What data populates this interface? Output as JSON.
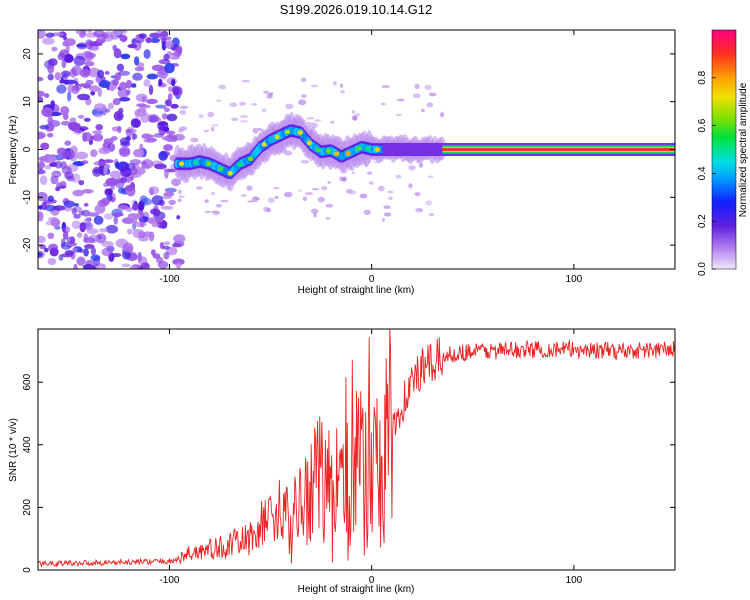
{
  "title": "S199.2026.019.10.14.G12",
  "chart_data": [
    {
      "type": "heatmap",
      "panel": "top",
      "xlabel": "Height of straight line (km)",
      "ylabel": "Frequency (Hz)",
      "xlim": [
        -165,
        150
      ],
      "ylim": [
        -25,
        25
      ],
      "xticks": [
        -100,
        0,
        100
      ],
      "yticks": [
        -20,
        -10,
        0,
        10,
        20
      ],
      "xtick_labels": [
        "-100",
        "0",
        "100"
      ],
      "ytick_labels": [
        "-20",
        "-10",
        "0",
        "10",
        "20"
      ],
      "noise_region_x": [
        -165,
        -97
      ],
      "ridge": {
        "x": [
          -96,
          -90,
          -85,
          -80,
          -75,
          -70,
          -65,
          -60,
          -55,
          -50,
          -45,
          -40,
          -35,
          -30,
          -25,
          -20,
          -15,
          -10,
          -5,
          0,
          10,
          20,
          30,
          35,
          150
        ],
        "freq": [
          -3,
          -3,
          -2.5,
          -3,
          -4,
          -5,
          -3,
          -2,
          0.5,
          2,
          3,
          4,
          3.5,
          1,
          -0.5,
          -0.2,
          -1.5,
          -0.5,
          0.5,
          0,
          0,
          0,
          0,
          0,
          0
        ],
        "amplitude_start": 0.25,
        "amplitude_end": 0.95
      },
      "colorbar": {
        "label": "Normalized spectral amplitude",
        "range": [
          0.0,
          1.0
        ],
        "ticks": [
          0.0,
          0.2,
          0.4,
          0.6,
          0.8
        ],
        "tick_labels": [
          "0.0",
          "0.2",
          "0.4",
          "0.6",
          "0.8"
        ],
        "colors": [
          "#e6d8f8",
          "#9a50e6",
          "#5010e0",
          "#0060ff",
          "#00d0ff",
          "#00e060",
          "#70e000",
          "#f0e000",
          "#ffa000",
          "#ff3030",
          "#ff0080"
        ]
      }
    },
    {
      "type": "line",
      "panel": "bottom",
      "series_name": "SNR",
      "color": "#ee2222",
      "xlabel": "Height of straight line (km)",
      "ylabel": "SNR (10 * v/v)",
      "xlim": [
        -165,
        150
      ],
      "ylim": [
        0,
        770
      ],
      "xticks": [
        -100,
        0,
        100
      ],
      "yticks": [
        0,
        200,
        400,
        600
      ],
      "xtick_labels": [
        "-100",
        "0",
        "100"
      ],
      "ytick_labels": [
        "0",
        "200",
        "400",
        "600"
      ],
      "x": [
        -165,
        -150,
        -120,
        -100,
        -95,
        -90,
        -85,
        -80,
        -75,
        -70,
        -65,
        -60,
        -55,
        -50,
        -45,
        -40,
        -35,
        -30,
        -25,
        -20,
        -15,
        -10,
        -5,
        0,
        5,
        10,
        15,
        20,
        25,
        30,
        35,
        40,
        50,
        60,
        80,
        100,
        120,
        150
      ],
      "y": [
        20,
        22,
        25,
        28,
        35,
        55,
        60,
        65,
        70,
        80,
        90,
        100,
        140,
        170,
        190,
        160,
        200,
        260,
        300,
        310,
        320,
        330,
        350,
        380,
        420,
        470,
        530,
        600,
        640,
        660,
        680,
        690,
        700,
        700,
        705,
        705,
        700,
        705
      ]
    }
  ]
}
